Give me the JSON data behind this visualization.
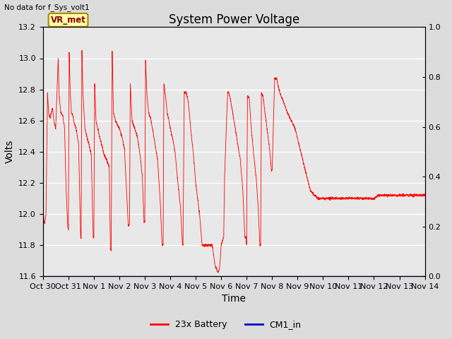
{
  "title": "System Power Voltage",
  "no_data_text": "No data for f_Sys_volt1",
  "ylabel_left": "Volts",
  "xlabel": "Time",
  "ylabel_right_ticks": [
    0.0,
    0.2,
    0.4,
    0.6,
    0.8,
    1.0
  ],
  "ylim_left": [
    11.6,
    13.2
  ],
  "ylim_right": [
    0.0,
    1.0
  ],
  "xlim_days": [
    0,
    15
  ],
  "x_tick_labels": [
    "Oct 30",
    "Oct 31",
    "Nov 1",
    "Nov 2",
    "Nov 3",
    "Nov 4",
    "Nov 5",
    "Nov 6",
    "Nov 7",
    "Nov 8",
    "Nov 9",
    "Nov 10",
    "Nov 11",
    "Nov 12",
    "Nov 13",
    "Nov 14"
  ],
  "battery_color": "#FF0000",
  "cm1_color": "#0000CC",
  "legend_battery": "23x Battery",
  "legend_cm1": "CM1_in",
  "vr_met_label": "VR_met",
  "vr_met_bg": "#FFFFAA",
  "vr_met_border": "#AA8800",
  "background_color": "#DCDCDC",
  "plot_bg_color": "#E8E8E8",
  "title_fontsize": 12,
  "axis_fontsize": 10,
  "tick_fontsize": 8,
  "yticks_left": [
    11.6,
    11.8,
    12.0,
    12.2,
    12.4,
    12.6,
    12.8,
    13.0,
    13.2
  ]
}
